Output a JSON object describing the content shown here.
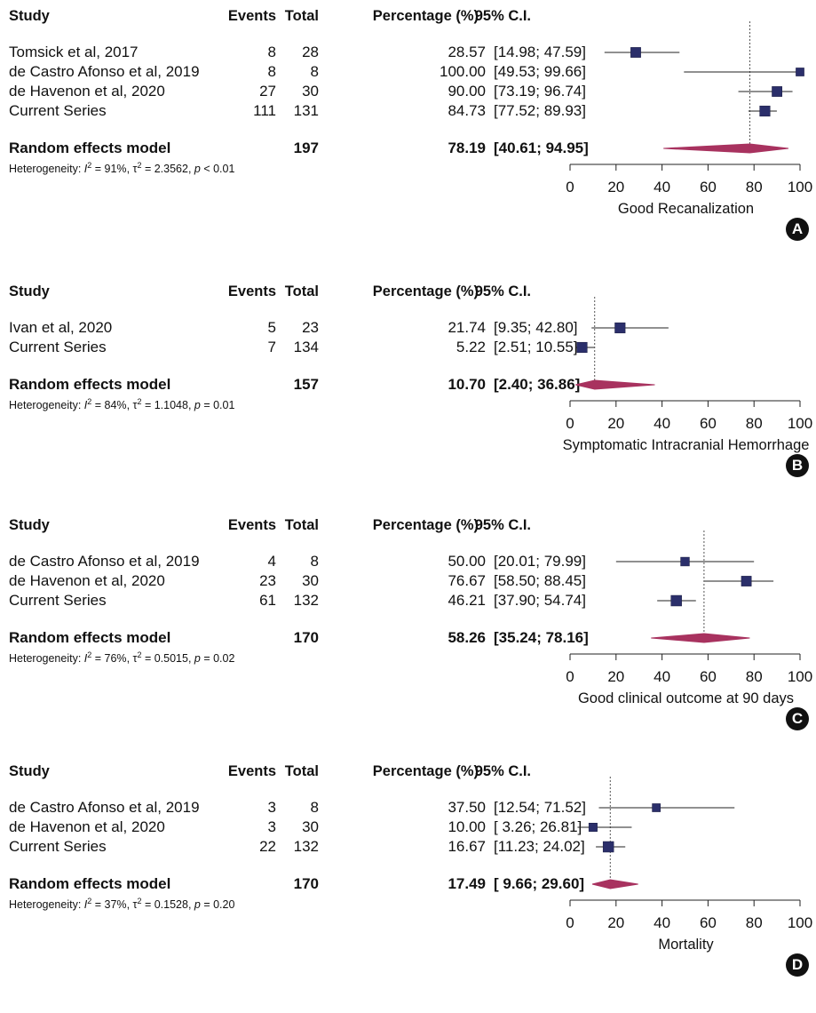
{
  "colors": {
    "square": "#2b2f6b",
    "diamond": "#a8325f",
    "line": "#222222"
  },
  "headers": {
    "study": "Study",
    "events": "Events",
    "total": "Total",
    "percentage": "Percentage (%)",
    "ci": "95% C.I."
  },
  "chart_data": [
    {
      "type": "forest",
      "panel_label": "A",
      "xlabel": "Good Recanalization",
      "xlim": [
        0,
        100
      ],
      "xticks": [
        0,
        20,
        40,
        60,
        80,
        100
      ],
      "studies": [
        {
          "name": "Tomsick et al, 2017",
          "events": "8",
          "total": "28",
          "pct": "28.57",
          "ci": "[14.98; 47.59]",
          "est": 28.57,
          "lo": 14.98,
          "hi": 47.59,
          "weight": 0.75
        },
        {
          "name": "de Castro Afonso et al, 2019",
          "events": "8",
          "total": "8",
          "pct": "100.00",
          "ci": "[49.53; 99.66]",
          "est": 100.0,
          "lo": 49.53,
          "hi": 99.66,
          "weight": 0.45
        },
        {
          "name": "de Havenon et al, 2020",
          "events": "27",
          "total": "30",
          "pct": "90.00",
          "ci": "[73.19; 96.74]",
          "est": 90.0,
          "lo": 73.19,
          "hi": 96.74,
          "weight": 0.75
        },
        {
          "name": "Current Series",
          "events": "111",
          "total": "131",
          "pct": "84.73",
          "ci": "[77.52; 89.93]",
          "est": 84.73,
          "lo": 77.52,
          "hi": 89.93,
          "weight": 0.8
        }
      ],
      "summary": {
        "name": "Random effects model",
        "total": "197",
        "pct": "78.19",
        "ci": "[40.61; 94.95]",
        "est": 78.19,
        "lo": 40.61,
        "hi": 94.95
      },
      "heterogeneity": {
        "i2": "91%",
        "tau2": "2.3562",
        "p": "p < 0.01"
      }
    },
    {
      "type": "forest",
      "panel_label": "B",
      "xlabel": "Symptomatic Intracranial Hemorrhage",
      "xlim": [
        0,
        100
      ],
      "xticks": [
        0,
        20,
        40,
        60,
        80,
        100
      ],
      "studies": [
        {
          "name": "Ivan et al, 2020",
          "events": "5",
          "total": "23",
          "pct": "21.74",
          "ci": "[9.35; 42.80]",
          "est": 21.74,
          "lo": 9.35,
          "hi": 42.8,
          "weight": 0.8
        },
        {
          "name": "Current Series",
          "events": "7",
          "total": "134",
          "pct": "5.22",
          "ci": "[2.51; 10.55]",
          "est": 5.22,
          "lo": 2.51,
          "hi": 10.55,
          "weight": 0.8
        }
      ],
      "summary": {
        "name": "Random effects model",
        "total": "157",
        "pct": "10.70",
        "ci": "[2.40; 36.86]",
        "est": 10.7,
        "lo": 2.4,
        "hi": 36.86
      },
      "heterogeneity": {
        "i2": "84%",
        "tau2": "1.1048",
        "p": "p = 0.01"
      }
    },
    {
      "type": "forest",
      "panel_label": "C",
      "xlabel": "Good clinical outcome at 90 days",
      "xlim": [
        0,
        100
      ],
      "xticks": [
        0,
        20,
        40,
        60,
        80,
        100
      ],
      "studies": [
        {
          "name": "de Castro Afonso et al, 2019",
          "events": "4",
          "total": "8",
          "pct": "50.00",
          "ci": "[20.01; 79.99]",
          "est": 50.0,
          "lo": 20.01,
          "hi": 79.99,
          "weight": 0.55
        },
        {
          "name": "de Havenon et al, 2020",
          "events": "23",
          "total": "30",
          "pct": "76.67",
          "ci": "[58.50; 88.45]",
          "est": 76.67,
          "lo": 58.5,
          "hi": 88.45,
          "weight": 0.75
        },
        {
          "name": "Current Series",
          "events": "61",
          "total": "132",
          "pct": "46.21",
          "ci": "[37.90; 54.74]",
          "est": 46.21,
          "lo": 37.9,
          "hi": 54.74,
          "weight": 0.85
        }
      ],
      "summary": {
        "name": "Random effects model",
        "total": "170",
        "pct": "58.26",
        "ci": "[35.24; 78.16]",
        "est": 58.26,
        "lo": 35.24,
        "hi": 78.16
      },
      "heterogeneity": {
        "i2": "76%",
        "tau2": "0.5015",
        "p": "p = 0.02"
      }
    },
    {
      "type": "forest",
      "panel_label": "D",
      "xlabel": "Mortality",
      "xlim": [
        0,
        100
      ],
      "xticks": [
        0,
        20,
        40,
        60,
        80,
        100
      ],
      "studies": [
        {
          "name": "de Castro Afonso et al, 2019",
          "events": "3",
          "total": "8",
          "pct": "37.50",
          "ci": "[12.54; 71.52]",
          "est": 37.5,
          "lo": 12.54,
          "hi": 71.52,
          "weight": 0.45
        },
        {
          "name": "de Havenon et al, 2020",
          "events": "3",
          "total": "30",
          "pct": "10.00",
          "ci": "[ 3.26; 26.81]",
          "est": 10.0,
          "lo": 3.26,
          "hi": 26.81,
          "weight": 0.5
        },
        {
          "name": "Current Series",
          "events": "22",
          "total": "132",
          "pct": "16.67",
          "ci": "[11.23; 24.02]",
          "est": 16.67,
          "lo": 11.23,
          "hi": 24.02,
          "weight": 0.85
        }
      ],
      "summary": {
        "name": "Random effects model",
        "total": "170",
        "pct": "17.49",
        "ci": "[ 9.66; 29.60]",
        "est": 17.49,
        "lo": 9.66,
        "hi": 29.6
      },
      "heterogeneity": {
        "i2": "37%",
        "tau2": "0.1528",
        "p": "p = 0.20"
      }
    }
  ]
}
